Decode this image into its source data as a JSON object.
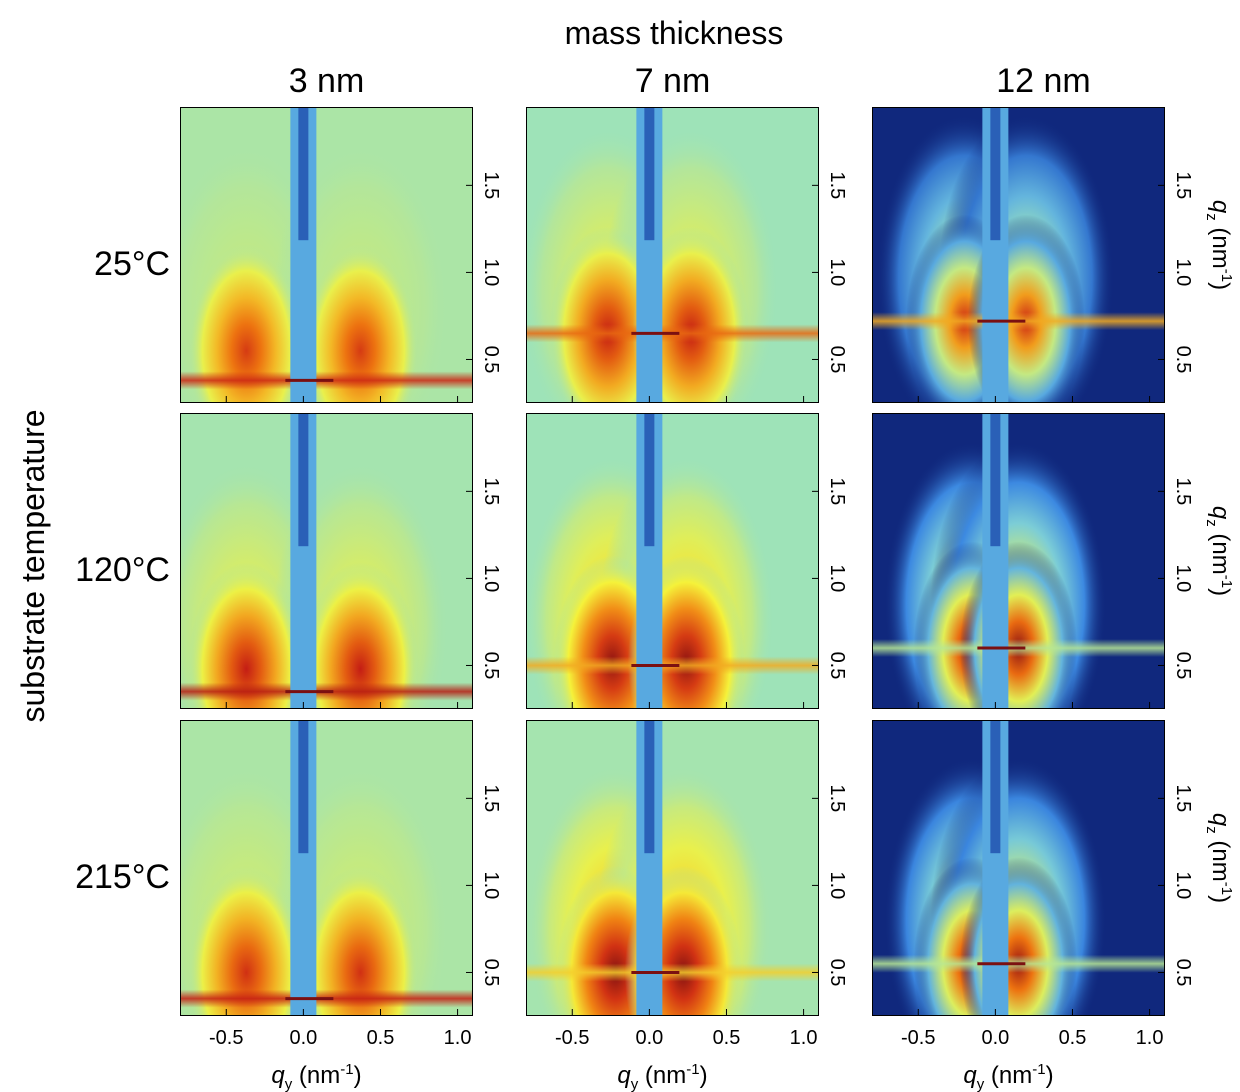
{
  "figure": {
    "top_label": "mass thickness",
    "left_label": "substrate temperature",
    "columns": [
      "3 nm",
      "7 nm",
      "12 nm"
    ],
    "rows": [
      "25°C",
      "120°C",
      "215°C"
    ],
    "x_axis_title": "q",
    "x_axis_subscript": "y",
    "x_axis_unit_open": " (nm",
    "x_axis_unit_sup": "-1",
    "x_axis_unit_close": ")",
    "z_axis_title": "q",
    "z_axis_subscript": "z",
    "z_axis_unit_open": " (nm",
    "z_axis_unit_sup": "-1",
    "z_axis_unit_close": ")",
    "x_tick_labels": [
      "-0.5",
      "0.0",
      "0.5",
      "1.0"
    ],
    "z_tick_labels": [
      "0.5",
      "1.0",
      "1.5"
    ]
  },
  "chart_data": {
    "type": "heatmap",
    "title": "",
    "xlabel": "qy (nm-1)",
    "ylabel": "qz (nm-1)",
    "xlim": [
      -0.8,
      1.1
    ],
    "ylim": [
      0.25,
      1.95
    ],
    "x_ticks": [
      -0.5,
      0.0,
      0.5,
      1.0
    ],
    "y_ticks": [
      0.5,
      1.0,
      1.5
    ],
    "grid": false,
    "colormap": [
      "#0a1a6e",
      "#3f8fe8",
      "#8ee0d0",
      "#f5f23a",
      "#f07a10",
      "#c81e14",
      "#5a0a10"
    ],
    "panels": [
      {
        "row": "25°C",
        "col": "3 nm",
        "background": 0.38,
        "blob_qy": 0.37,
        "blob_qz": 0.55,
        "blob_peak": 0.78,
        "yoneda_qz": 0.38,
        "yoneda_peak": 0.82,
        "beamstop_qy": 0.0
      },
      {
        "row": "25°C",
        "col": "7 nm",
        "background": 0.36,
        "blob_qy": 0.27,
        "blob_qz": 0.65,
        "blob_peak": 0.84,
        "yoneda_qz": 0.65,
        "yoneda_peak": 0.7,
        "beamstop_qy": 0.0
      },
      {
        "row": "25°C",
        "col": "12 nm",
        "background": 0.02,
        "blob_qy": 0.2,
        "blob_qz": 0.72,
        "blob_peak": 0.82,
        "yoneda_qz": 0.72,
        "yoneda_peak": 0.6,
        "beamstop_qy": 0.0
      },
      {
        "row": "120°C",
        "col": "3 nm",
        "background": 0.37,
        "blob_qy": 0.37,
        "blob_qz": 0.48,
        "blob_peak": 0.84,
        "yoneda_qz": 0.35,
        "yoneda_peak": 0.86,
        "beamstop_qy": 0.0
      },
      {
        "row": "120°C",
        "col": "7 nm",
        "background": 0.36,
        "blob_qy": 0.24,
        "blob_qz": 0.52,
        "blob_peak": 0.92,
        "yoneda_qz": 0.5,
        "yoneda_peak": 0.6,
        "beamstop_qy": 0.0
      },
      {
        "row": "120°C",
        "col": "12 nm",
        "background": 0.02,
        "blob_qy": 0.15,
        "blob_qz": 0.6,
        "blob_peak": 0.92,
        "yoneda_qz": 0.6,
        "yoneda_peak": 0.4,
        "beamstop_qy": 0.0
      },
      {
        "row": "215°C",
        "col": "3 nm",
        "background": 0.38,
        "blob_qy": 0.37,
        "blob_qz": 0.5,
        "blob_peak": 0.8,
        "yoneda_qz": 0.35,
        "yoneda_peak": 0.84,
        "beamstop_qy": 0.0
      },
      {
        "row": "215°C",
        "col": "7 nm",
        "background": 0.37,
        "blob_qy": 0.22,
        "blob_qz": 0.5,
        "blob_peak": 0.94,
        "yoneda_qz": 0.5,
        "yoneda_peak": 0.55,
        "beamstop_qy": 0.0
      },
      {
        "row": "215°C",
        "col": "12 nm",
        "background": 0.02,
        "blob_qy": 0.15,
        "blob_qz": 0.55,
        "blob_peak": 0.9,
        "yoneda_qz": 0.55,
        "yoneda_peak": 0.4,
        "beamstop_qy": 0.0
      }
    ]
  }
}
